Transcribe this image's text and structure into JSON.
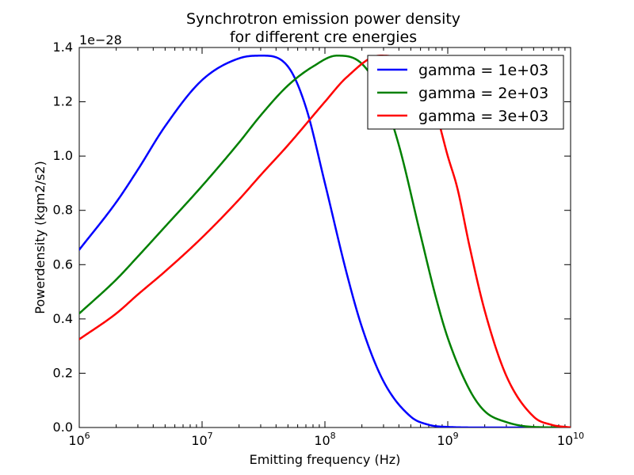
{
  "chart_data": {
    "type": "line",
    "title_line1": "Synchrotron emission power density",
    "title_line2": "for different cre energies",
    "xlabel": "Emitting frequency (Hz)",
    "ylabel": "Powerdensity (kgm2/s2)",
    "y_offset_label": "1e−28",
    "xscale": "log",
    "xlim": [
      1000000.0,
      10000000000.0
    ],
    "ylim": [
      0,
      1.4
    ],
    "x_ticks": [
      {
        "base": "10",
        "exp": "6",
        "value": 1000000.0
      },
      {
        "base": "10",
        "exp": "7",
        "value": 10000000.0
      },
      {
        "base": "10",
        "exp": "8",
        "value": 100000000.0
      },
      {
        "base": "10",
        "exp": "9",
        "value": 1000000000.0
      },
      {
        "base": "10",
        "exp": "10",
        "value": 10000000000.0
      }
    ],
    "y_ticks": [
      "0.0",
      "0.2",
      "0.4",
      "0.6",
      "0.8",
      "1.0",
      "1.2",
      "1.4"
    ],
    "grid": false,
    "legend_position": "upper right",
    "series": [
      {
        "name": "gamma = 1e+03",
        "color": "#0000ff",
        "x": [
          1000000.0,
          2000000.0,
          3000000.0,
          5000000.0,
          10000000.0,
          20000000.0,
          31000000.0,
          50000000.0,
          70000000.0,
          100000000.0,
          150000000.0,
          200000000.0,
          300000000.0,
          500000000.0,
          700000000.0,
          1000000000.0,
          2000000000.0,
          10000000000.0
        ],
        "y": [
          0.655,
          0.83,
          0.95,
          1.11,
          1.28,
          1.36,
          1.37,
          1.33,
          1.18,
          0.9,
          0.57,
          0.37,
          0.17,
          0.04,
          0.01,
          0.002,
          0.0,
          0.0
        ]
      },
      {
        "name": "gamma = 2e+03",
        "color": "#008000",
        "x": [
          1000000.0,
          2000000.0,
          3000000.0,
          5000000.0,
          10000000.0,
          20000000.0,
          30000000.0,
          50000000.0,
          80000000.0,
          125000000.0,
          200000000.0,
          300000000.0,
          400000000.0,
          600000000.0,
          800000000.0,
          1000000000.0,
          1500000000.0,
          2000000000.0,
          3000000000.0,
          5000000000.0,
          10000000000.0
        ],
        "y": [
          0.42,
          0.545,
          0.63,
          0.74,
          0.89,
          1.05,
          1.15,
          1.26,
          1.33,
          1.37,
          1.34,
          1.21,
          1.04,
          0.71,
          0.48,
          0.33,
          0.14,
          0.06,
          0.02,
          0.002,
          0.0
        ]
      },
      {
        "name": "gamma = 3e+03",
        "color": "#ff0000",
        "x": [
          1000000.0,
          2000000.0,
          3000000.0,
          5000000.0,
          10000000.0,
          20000000.0,
          30000000.0,
          50000000.0,
          100000000.0,
          150000000.0,
          280000000.0,
          400000000.0,
          600000000.0,
          800000000.0,
          1000000000.0,
          1200000000.0,
          1500000000.0,
          2000000000.0,
          3000000000.0,
          5000000000.0,
          7000000000.0,
          10000000000.0
        ],
        "y": [
          0.325,
          0.42,
          0.49,
          0.575,
          0.7,
          0.84,
          0.93,
          1.04,
          1.2,
          1.29,
          1.37,
          1.36,
          1.28,
          1.16,
          1.0,
          0.88,
          0.67,
          0.43,
          0.19,
          0.04,
          0.01,
          0.0
        ]
      }
    ]
  }
}
